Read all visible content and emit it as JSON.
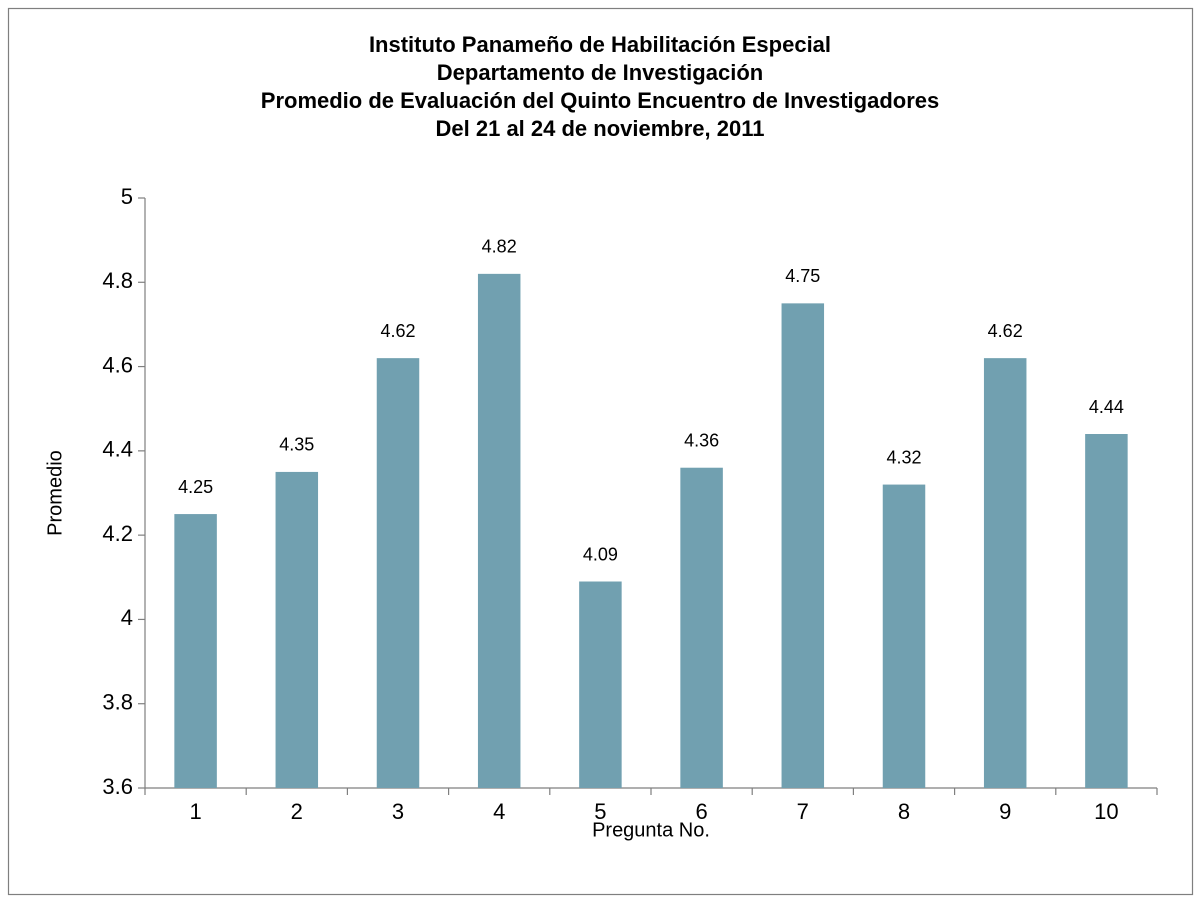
{
  "chart_data": {
    "type": "bar",
    "title": [
      "Instituto Panameño de Habilitación Especial",
      "Departamento de Investigación",
      "Promedio de Evaluación del Quinto Encuentro de Investigadores",
      "Del 21 al 24 de noviembre, 2011"
    ],
    "xlabel": "Pregunta No.",
    "ylabel": "Promedio",
    "categories": [
      "1",
      "2",
      "3",
      "4",
      "5",
      "6",
      "7",
      "8",
      "9",
      "10"
    ],
    "values": [
      4.25,
      4.35,
      4.62,
      4.82,
      4.09,
      4.36,
      4.75,
      4.32,
      4.62,
      4.44
    ],
    "color": "#71a0b0",
    "ylim": [
      3.6,
      5
    ],
    "yticks": [
      3.6,
      3.8,
      4,
      4.2,
      4.4,
      4.6,
      4.8,
      5
    ],
    "grid": false
  }
}
